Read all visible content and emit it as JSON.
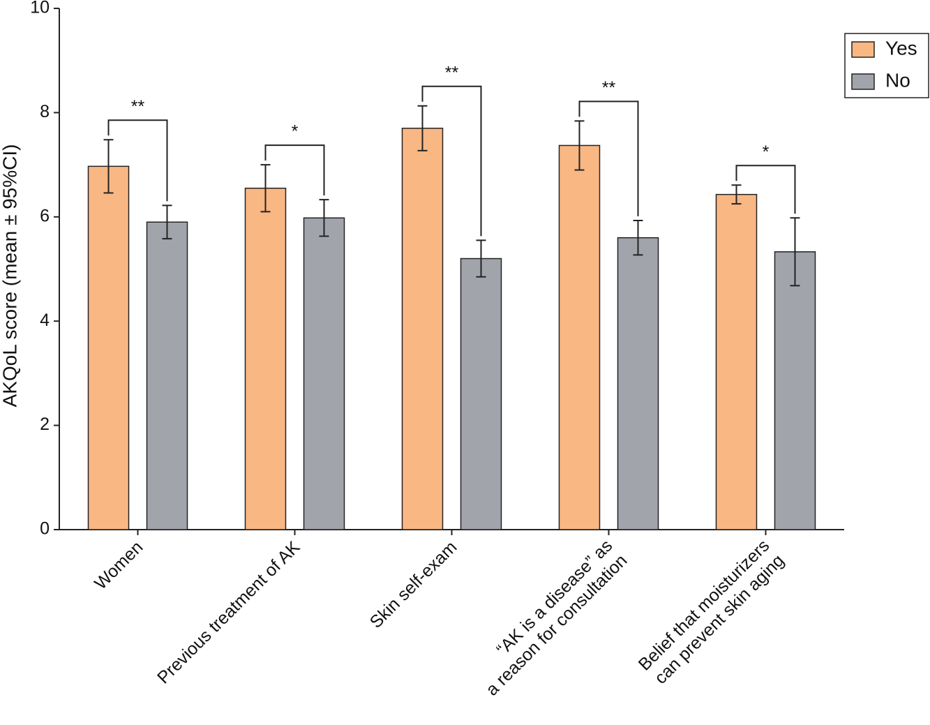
{
  "chart_data": {
    "type": "bar",
    "y_label": "AKQoL score (mean ± 95%CI)",
    "categories": [
      [
        "Women"
      ],
      [
        "Previous treatment of AK"
      ],
      [
        "Skin self-exam"
      ],
      [
        "“AK is a disease” as",
        "a reason for consultation"
      ],
      [
        "Belief that moisturizers",
        "can prevent skin aging"
      ]
    ],
    "series": [
      {
        "name": "Yes",
        "color": "#f9b784",
        "values": [
          6.97,
          6.55,
          7.7,
          7.37,
          6.43
        ],
        "errors": [
          0.51,
          0.45,
          0.43,
          0.47,
          0.18
        ]
      },
      {
        "name": "No",
        "color": "#a1a5ab",
        "values": [
          5.9,
          5.98,
          5.2,
          5.6,
          5.33
        ],
        "errors": [
          0.32,
          0.35,
          0.35,
          0.33,
          0.65
        ]
      }
    ],
    "significance": [
      "**",
      "*",
      "**",
      "**",
      "*"
    ],
    "ylim": [
      0,
      10
    ],
    "yticks": [
      0,
      2,
      4,
      6,
      8,
      10
    ],
    "grid": false,
    "legend": "top-right"
  }
}
